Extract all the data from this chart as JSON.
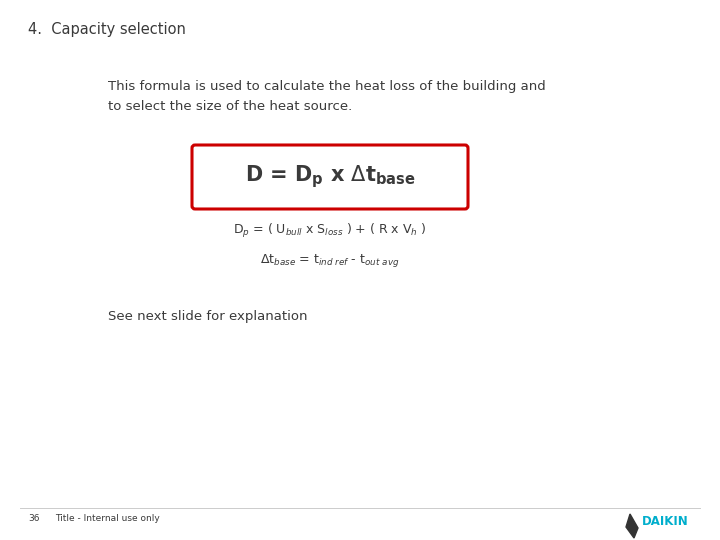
{
  "title": "4.  Capacity selection",
  "body_text_line1": "This formula is used to calculate the heat loss of the building and",
  "body_text_line2": "to select the size of the heat source.",
  "see_text": "See next slide for explanation",
  "footer_number": "36",
  "footer_title": "Title - Internal use only",
  "daikin_color": "#00AECC",
  "box_border_color": "#CC0000",
  "background_color": "#FFFFFF",
  "text_color": "#3A3A3A",
  "title_fontsize": 10.5,
  "body_fontsize": 9.5,
  "formula_fontsize": 15,
  "eq_fontsize": 9,
  "footer_fontsize": 6.5
}
